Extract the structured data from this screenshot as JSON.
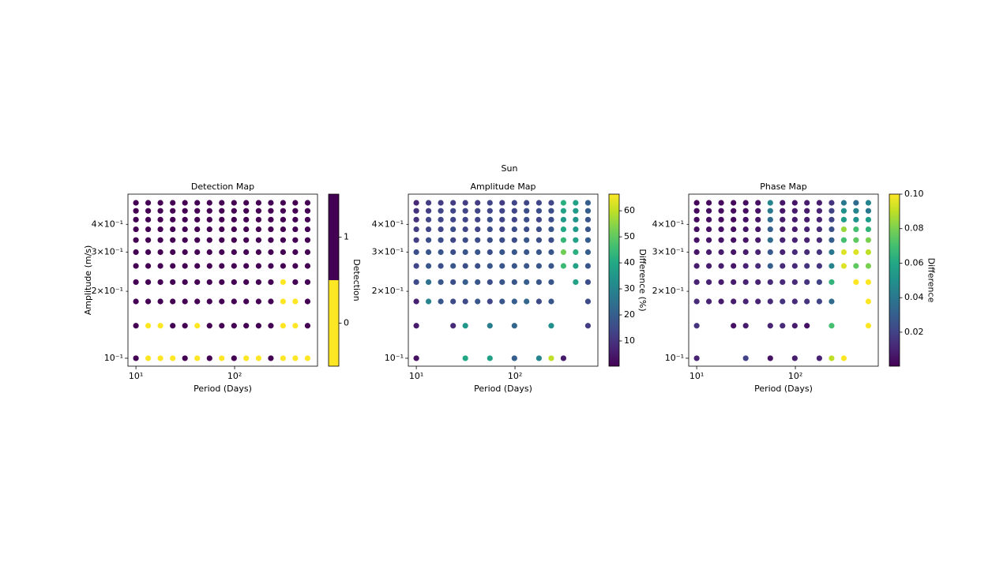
{
  "chart_data": {
    "title": "Sun",
    "subplots": [
      {
        "type": "scatter",
        "title": "Detection Map",
        "xlabel": "Period (Days)",
        "ylabel": "Amplitude (m/s)",
        "xscale": "log",
        "yscale": "log",
        "x": [
          10,
          13.3,
          17.7,
          23.6,
          31.4,
          41.8,
          55.7,
          74.1,
          98.7,
          131,
          175,
          233,
          310,
          412,
          549
        ],
        "y": [
          0.1,
          0.14,
          0.18,
          0.22,
          0.26,
          0.3,
          0.34,
          0.38,
          0.42,
          0.46,
          0.5
        ],
        "values": [
          [
            1,
            0,
            0,
            0,
            1,
            0,
            1,
            0,
            1,
            0,
            0,
            1,
            0,
            0,
            0
          ],
          [
            1,
            0,
            0,
            1,
            1,
            0,
            1,
            1,
            1,
            1,
            1,
            1,
            0,
            0,
            1
          ],
          [
            1,
            1,
            1,
            1,
            1,
            1,
            1,
            1,
            1,
            1,
            1,
            1,
            0,
            0,
            1
          ],
          [
            1,
            1,
            1,
            1,
            1,
            1,
            1,
            1,
            1,
            1,
            1,
            1,
            0,
            1,
            1
          ],
          [
            1,
            1,
            1,
            1,
            1,
            1,
            1,
            1,
            1,
            1,
            1,
            1,
            1,
            1,
            1
          ],
          [
            1,
            1,
            1,
            1,
            1,
            1,
            1,
            1,
            1,
            1,
            1,
            1,
            1,
            1,
            1
          ],
          [
            1,
            1,
            1,
            1,
            1,
            1,
            1,
            1,
            1,
            1,
            1,
            1,
            1,
            1,
            1
          ],
          [
            1,
            1,
            1,
            1,
            1,
            1,
            1,
            1,
            1,
            1,
            1,
            1,
            1,
            1,
            1
          ],
          [
            1,
            1,
            1,
            1,
            1,
            1,
            1,
            1,
            1,
            1,
            1,
            1,
            1,
            1,
            1
          ],
          [
            1,
            1,
            1,
            1,
            1,
            1,
            1,
            1,
            1,
            1,
            1,
            1,
            1,
            1,
            1
          ],
          [
            1,
            1,
            1,
            1,
            1,
            1,
            1,
            1,
            1,
            1,
            1,
            1,
            1,
            1,
            1
          ]
        ],
        "xlim": [
          8.3,
          692
        ],
        "ylim": [
          0.0921,
          0.547
        ],
        "xticks": [
          {
            "value": 10,
            "label": "10¹"
          },
          {
            "value": 100,
            "label": "10²"
          }
        ],
        "yticks": [
          {
            "value": 0.1,
            "label": "10⁻¹"
          },
          {
            "value": 0.2,
            "label": "2×10⁻¹"
          },
          {
            "value": 0.3,
            "label": "3×10⁻¹"
          },
          {
            "value": 0.4,
            "label": "4×10⁻¹"
          }
        ],
        "cmap": "viridis_r",
        "cmap_levels": 2,
        "clim": [
          -0.5,
          1.5
        ],
        "colorbar_label": "Detection",
        "colorbar_ticks": [
          0,
          1
        ]
      },
      {
        "type": "scatter",
        "title": "Amplitude Map",
        "xlabel": "Period (Days)",
        "xscale": "log",
        "yscale": "log",
        "x": [
          10,
          13.3,
          17.7,
          23.6,
          31.4,
          41.8,
          55.7,
          74.1,
          98.7,
          131,
          175,
          233,
          310,
          412,
          549
        ],
        "y": [
          0.1,
          0.14,
          0.18,
          0.22,
          0.26,
          0.3,
          0.34,
          0.38,
          0.42,
          0.46,
          0.5
        ],
        "values": [
          [
            3,
            null,
            null,
            null,
            40,
            null,
            38,
            null,
            20,
            null,
            30,
            60,
            5,
            null,
            null
          ],
          [
            5,
            null,
            null,
            8,
            35,
            null,
            28,
            null,
            22,
            null,
            null,
            33,
            null,
            null,
            12
          ],
          [
            6,
            30,
            18,
            15,
            15,
            18,
            14,
            18,
            20,
            22,
            15,
            18,
            null,
            null,
            15
          ],
          [
            15,
            25,
            18,
            16,
            20,
            18,
            16,
            18,
            18,
            20,
            18,
            18,
            null,
            38,
            16
          ],
          [
            14,
            18,
            16,
            18,
            16,
            16,
            18,
            18,
            18,
            18,
            18,
            18,
            45,
            38,
            18
          ],
          [
            16,
            18,
            18,
            16,
            18,
            18,
            16,
            18,
            18,
            18,
            18,
            18,
            52,
            42,
            20
          ],
          [
            12,
            16,
            16,
            14,
            16,
            16,
            16,
            16,
            16,
            18,
            16,
            16,
            44,
            38,
            20
          ],
          [
            12,
            14,
            14,
            16,
            14,
            14,
            16,
            14,
            16,
            16,
            16,
            18,
            40,
            36,
            18
          ],
          [
            10,
            14,
            14,
            14,
            14,
            14,
            16,
            14,
            14,
            16,
            14,
            16,
            36,
            34,
            18
          ],
          [
            10,
            12,
            14,
            14,
            14,
            14,
            14,
            14,
            14,
            16,
            16,
            16,
            38,
            36,
            20
          ],
          [
            8,
            12,
            12,
            12,
            12,
            12,
            14,
            12,
            14,
            14,
            14,
            14,
            42,
            38,
            20
          ]
        ],
        "xlim": [
          8.3,
          692
        ],
        "ylim": [
          0.0921,
          0.547
        ],
        "xticks": [
          {
            "value": 10,
            "label": "10¹"
          },
          {
            "value": 100,
            "label": "10²"
          }
        ],
        "yticks": [
          {
            "value": 0.1,
            "label": "10⁻¹"
          },
          {
            "value": 0.2,
            "label": "2×10⁻¹"
          },
          {
            "value": 0.3,
            "label": "3×10⁻¹"
          },
          {
            "value": 0.4,
            "label": "4×10⁻¹"
          }
        ],
        "cmap": "viridis",
        "clim": [
          0.3,
          66.4
        ],
        "colorbar_label": "Difference (%)",
        "colorbar_ticks": [
          10,
          20,
          30,
          40,
          50,
          60
        ]
      },
      {
        "type": "scatter",
        "title": "Phase Map",
        "xlabel": "Period (Days)",
        "xscale": "log",
        "yscale": "log",
        "x": [
          10,
          13.3,
          17.7,
          23.6,
          31.4,
          41.8,
          55.7,
          74.1,
          98.7,
          131,
          175,
          233,
          310,
          412,
          549
        ],
        "y": [
          0.1,
          0.14,
          0.18,
          0.22,
          0.26,
          0.3,
          0.34,
          0.38,
          0.42,
          0.46,
          0.5
        ],
        "values": [
          [
            0.01,
            null,
            null,
            null,
            0.02,
            null,
            0.005,
            null,
            0.008,
            null,
            0.01,
            0.09,
            0.1,
            null,
            null
          ],
          [
            0.015,
            null,
            null,
            0.005,
            0.008,
            null,
            0.01,
            0.012,
            0.008,
            0.005,
            null,
            0.07,
            null,
            null,
            0.1
          ],
          [
            0.012,
            0.01,
            0.008,
            0.008,
            0.01,
            0.01,
            0.012,
            0.015,
            0.012,
            0.015,
            0.02,
            0.035,
            null,
            null,
            0.1
          ],
          [
            0.01,
            0.01,
            0.008,
            0.008,
            0.01,
            0.01,
            0.012,
            0.012,
            0.012,
            0.015,
            0.02,
            0.065,
            null,
            0.1,
            0.1
          ],
          [
            0.008,
            0.008,
            0.008,
            0.006,
            0.01,
            0.012,
            0.03,
            0.012,
            0.012,
            0.015,
            0.015,
            0.045,
            0.095,
            0.075,
            0.08
          ],
          [
            0.006,
            0.008,
            0.008,
            0.006,
            0.008,
            0.01,
            0.028,
            0.01,
            0.012,
            0.012,
            0.015,
            0.04,
            0.095,
            0.095,
            0.09
          ],
          [
            0.005,
            0.006,
            0.006,
            0.005,
            0.006,
            0.008,
            0.035,
            0.01,
            0.01,
            0.01,
            0.012,
            0.03,
            0.07,
            0.075,
            0.08
          ],
          [
            0.004,
            0.005,
            0.005,
            0.004,
            0.006,
            0.006,
            0.03,
            0.008,
            0.008,
            0.01,
            0.012,
            0.025,
            0.085,
            0.07,
            0.065
          ],
          [
            0.003,
            0.004,
            0.004,
            0.003,
            0.005,
            0.006,
            0.035,
            0.008,
            0.008,
            0.008,
            0.01,
            0.02,
            0.055,
            0.05,
            0.055
          ],
          [
            0.003,
            0.004,
            0.004,
            0.003,
            0.004,
            0.005,
            0.04,
            0.006,
            0.008,
            0.008,
            0.01,
            0.02,
            0.05,
            0.045,
            0.04
          ],
          [
            0.002,
            0.003,
            0.003,
            0.002,
            0.004,
            0.004,
            0.045,
            0.006,
            0.006,
            0.008,
            0.008,
            0.015,
            0.04,
            0.035,
            0.045
          ]
        ],
        "xlim": [
          8.3,
          692
        ],
        "ylim": [
          0.0921,
          0.547
        ],
        "xticks": [
          {
            "value": 10,
            "label": "10¹"
          },
          {
            "value": 100,
            "label": "10²"
          }
        ],
        "yticks": [
          {
            "value": 0.1,
            "label": "10⁻¹"
          },
          {
            "value": 0.2,
            "label": "2×10⁻¹"
          },
          {
            "value": 0.3,
            "label": "3×10⁻¹"
          },
          {
            "value": 0.4,
            "label": "4×10⁻¹"
          }
        ],
        "cmap": "viridis",
        "clim": [
          0.0003,
          0.1
        ],
        "colorbar_label": "Difference",
        "colorbar_ticks": [
          0.02,
          0.04,
          0.06,
          0.08,
          {
            "value": 0.1,
            "label": "0.10"
          }
        ]
      }
    ]
  }
}
